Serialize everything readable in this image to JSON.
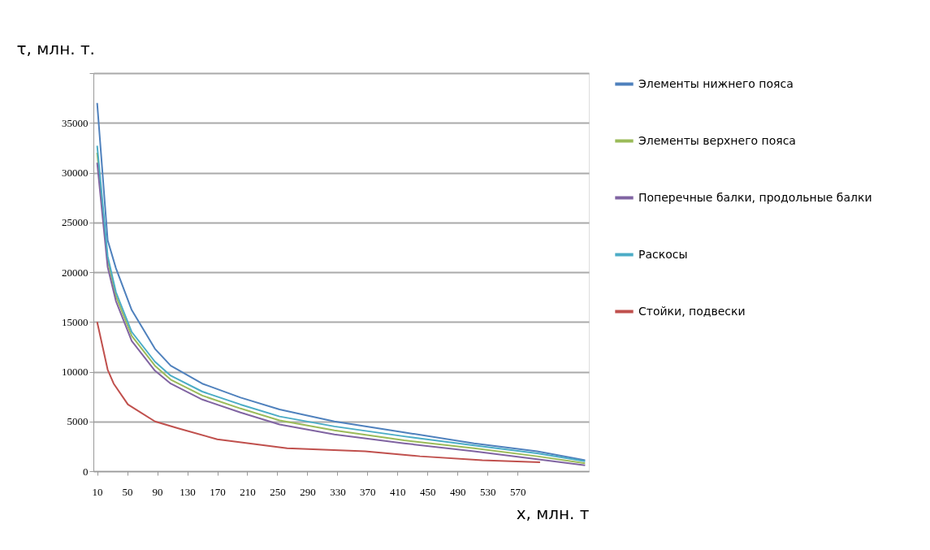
{
  "chart_data": {
    "type": "line",
    "xlabel": "x, млн. т",
    "ylabel": "τ, млн.  т.",
    "xlim": [
      5,
      665
    ],
    "xticks": [
      10,
      50,
      90,
      130,
      170,
      210,
      250,
      290,
      330,
      370,
      410,
      450,
      490,
      530,
      570
    ],
    "ylim": [
      0,
      40000
    ],
    "yticks": [
      0,
      5000,
      10000,
      15000,
      20000,
      25000,
      30000,
      35000,
      {
        "value": 40000,
        "label": null
      }
    ],
    "grid": "y",
    "legend": "right",
    "marker": "none",
    "line_style": "solid",
    "series": [
      {
        "name": "Элементы нижнего пояса",
        "color": "#4f81bd",
        "x": [
          10,
          24,
          35,
          56,
          87,
          108,
          150,
          201,
          253,
          326,
          419,
          512,
          596,
          660
        ],
        "values": [
          37000,
          23200,
          20400,
          16200,
          12300,
          10600,
          8800,
          7400,
          6200,
          5000,
          3900,
          2800,
          2000,
          1100
        ]
      },
      {
        "name": "Элементы верхнего пояса",
        "color": "#9bbb59",
        "x": [
          10,
          24,
          35,
          56,
          87,
          108,
          150,
          201,
          253,
          326,
          419,
          512,
          596,
          660
        ],
        "values": [
          32000,
          21200,
          17600,
          13600,
          10600,
          9200,
          7600,
          6300,
          5100,
          4100,
          3100,
          2300,
          1500,
          800
        ]
      },
      {
        "name": "Поперечные балки, продольные балки",
        "color": "#8064a2",
        "x": [
          10,
          24,
          35,
          56,
          87,
          108,
          150,
          201,
          253,
          326,
          419,
          512,
          596,
          660
        ],
        "values": [
          31000,
          20500,
          17100,
          13100,
          10100,
          8800,
          7200,
          5900,
          4700,
          3700,
          2800,
          2000,
          1200,
          600
        ]
      },
      {
        "name": "Раскосы",
        "color": "#4bacc6",
        "x": [
          10,
          24,
          35,
          56,
          87,
          108,
          150,
          201,
          253,
          326,
          419,
          512,
          596,
          660
        ],
        "values": [
          32700,
          21600,
          18000,
          14000,
          11000,
          9600,
          8000,
          6700,
          5500,
          4500,
          3500,
          2600,
          1800,
          1000
        ]
      },
      {
        "name": "Стойки, подвески",
        "color": "#c0504d",
        "x": [
          10,
          24,
          32,
          51,
          87,
          118,
          170,
          263,
          367,
          440,
          523,
          600
        ],
        "values": [
          15000,
          10200,
          8800,
          6700,
          5000,
          4300,
          3200,
          2300,
          2000,
          1500,
          1100,
          900
        ]
      }
    ]
  }
}
